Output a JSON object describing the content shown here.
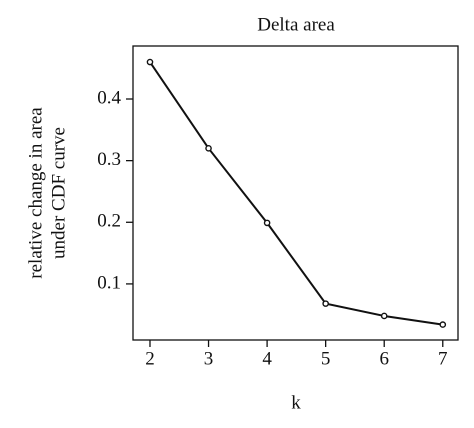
{
  "chart_data": {
    "type": "line",
    "title": "Delta area",
    "x_label": "k",
    "y_label": [
      "relative change in area",
      "under CDF curve"
    ],
    "x": [
      2,
      3,
      4,
      5,
      6,
      7
    ],
    "series": [
      {
        "name": "Delta area",
        "color": "#111111",
        "values": [
          0.46,
          0.32,
          0.199,
          0.068,
          0.048,
          0.034
        ]
      }
    ],
    "xlim": [
      1.71,
      7.26
    ],
    "ylim": [
      0.009,
      0.486
    ],
    "xticks": [
      2,
      3,
      4,
      5,
      6,
      7
    ],
    "yticks": [
      0.1,
      0.2,
      0.3,
      0.4
    ],
    "grid": false
  }
}
